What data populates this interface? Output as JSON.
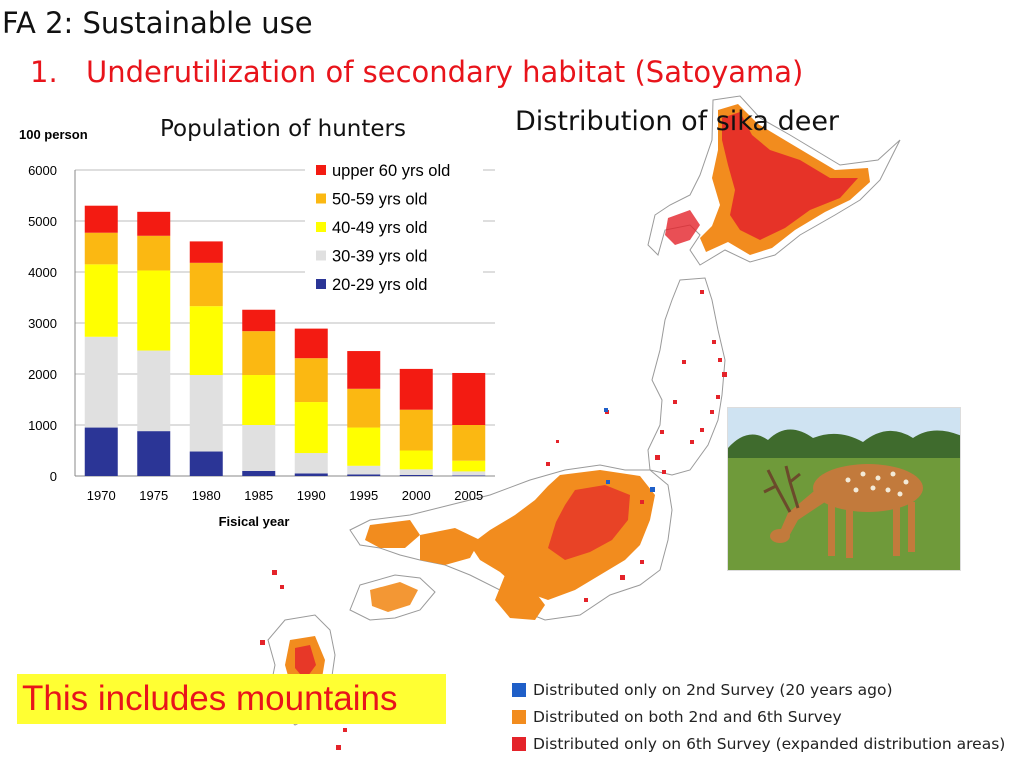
{
  "slide": {
    "title": "FA 2: Sustainable use",
    "subtitle_number": "1.",
    "subtitle_text": "Underutilization of secondary habitat (Satoyama)",
    "callout": "This includes mountains"
  },
  "map": {
    "title": "Distribution of sika deer",
    "colors": {
      "only_2nd": "#1f5fc8",
      "both": "#f28c1e",
      "only_6th": "#e4232a",
      "coast": "#9a9a9a"
    },
    "legend": [
      {
        "label": "Distributed only on 2nd Survey (20 years ago)",
        "color": "#1f5fc8"
      },
      {
        "label": "Distributed on both 2nd and 6th Survey",
        "color": "#f28c1e"
      },
      {
        "label": "Distributed only on 6th Survey (expanded distribution areas)",
        "color": "#e4232a"
      }
    ]
  },
  "photo": {
    "icon": "deer-photo",
    "colors": {
      "sky": "#cfe3f2",
      "trees": "#3f6b2d",
      "grass": "#6f9a3a",
      "deer": "#c27a3c"
    }
  },
  "chart_data": {
    "type": "bar",
    "stacked": true,
    "title": "Population of hunters",
    "ylabel": "100 person",
    "xlabel": "Fisical year",
    "ylim": [
      0,
      6000
    ],
    "yticks": [
      0,
      1000,
      2000,
      3000,
      4000,
      5000,
      6000
    ],
    "grid": true,
    "legend_position": "top-right",
    "categories": [
      "1970",
      "1975",
      "1980",
      "1985",
      "1990",
      "1995",
      "2000",
      "2005"
    ],
    "series": [
      {
        "name": "20-29 yrs old",
        "color": "#2b3596",
        "values": [
          950,
          880,
          480,
          100,
          50,
          30,
          20,
          10
        ]
      },
      {
        "name": "30-39 yrs old",
        "color": "#e0e0e0",
        "values": [
          1780,
          1580,
          1500,
          900,
          400,
          170,
          110,
          80
        ]
      },
      {
        "name": "40-49 yrs old",
        "color": "#ffff00",
        "values": [
          1420,
          1570,
          1350,
          980,
          1000,
          750,
          370,
          210
        ]
      },
      {
        "name": "50-59 yrs old",
        "color": "#fbb812",
        "values": [
          620,
          680,
          850,
          860,
          860,
          760,
          800,
          700
        ]
      },
      {
        "name": "upper 60 yrs old",
        "color": "#f31b12",
        "values": [
          530,
          470,
          420,
          420,
          580,
          740,
          800,
          1020
        ]
      }
    ],
    "legend_order": [
      "upper 60 yrs old",
      "50-59 yrs old",
      "40-49 yrs old",
      "30-39 yrs old",
      "20-29 yrs old"
    ]
  }
}
